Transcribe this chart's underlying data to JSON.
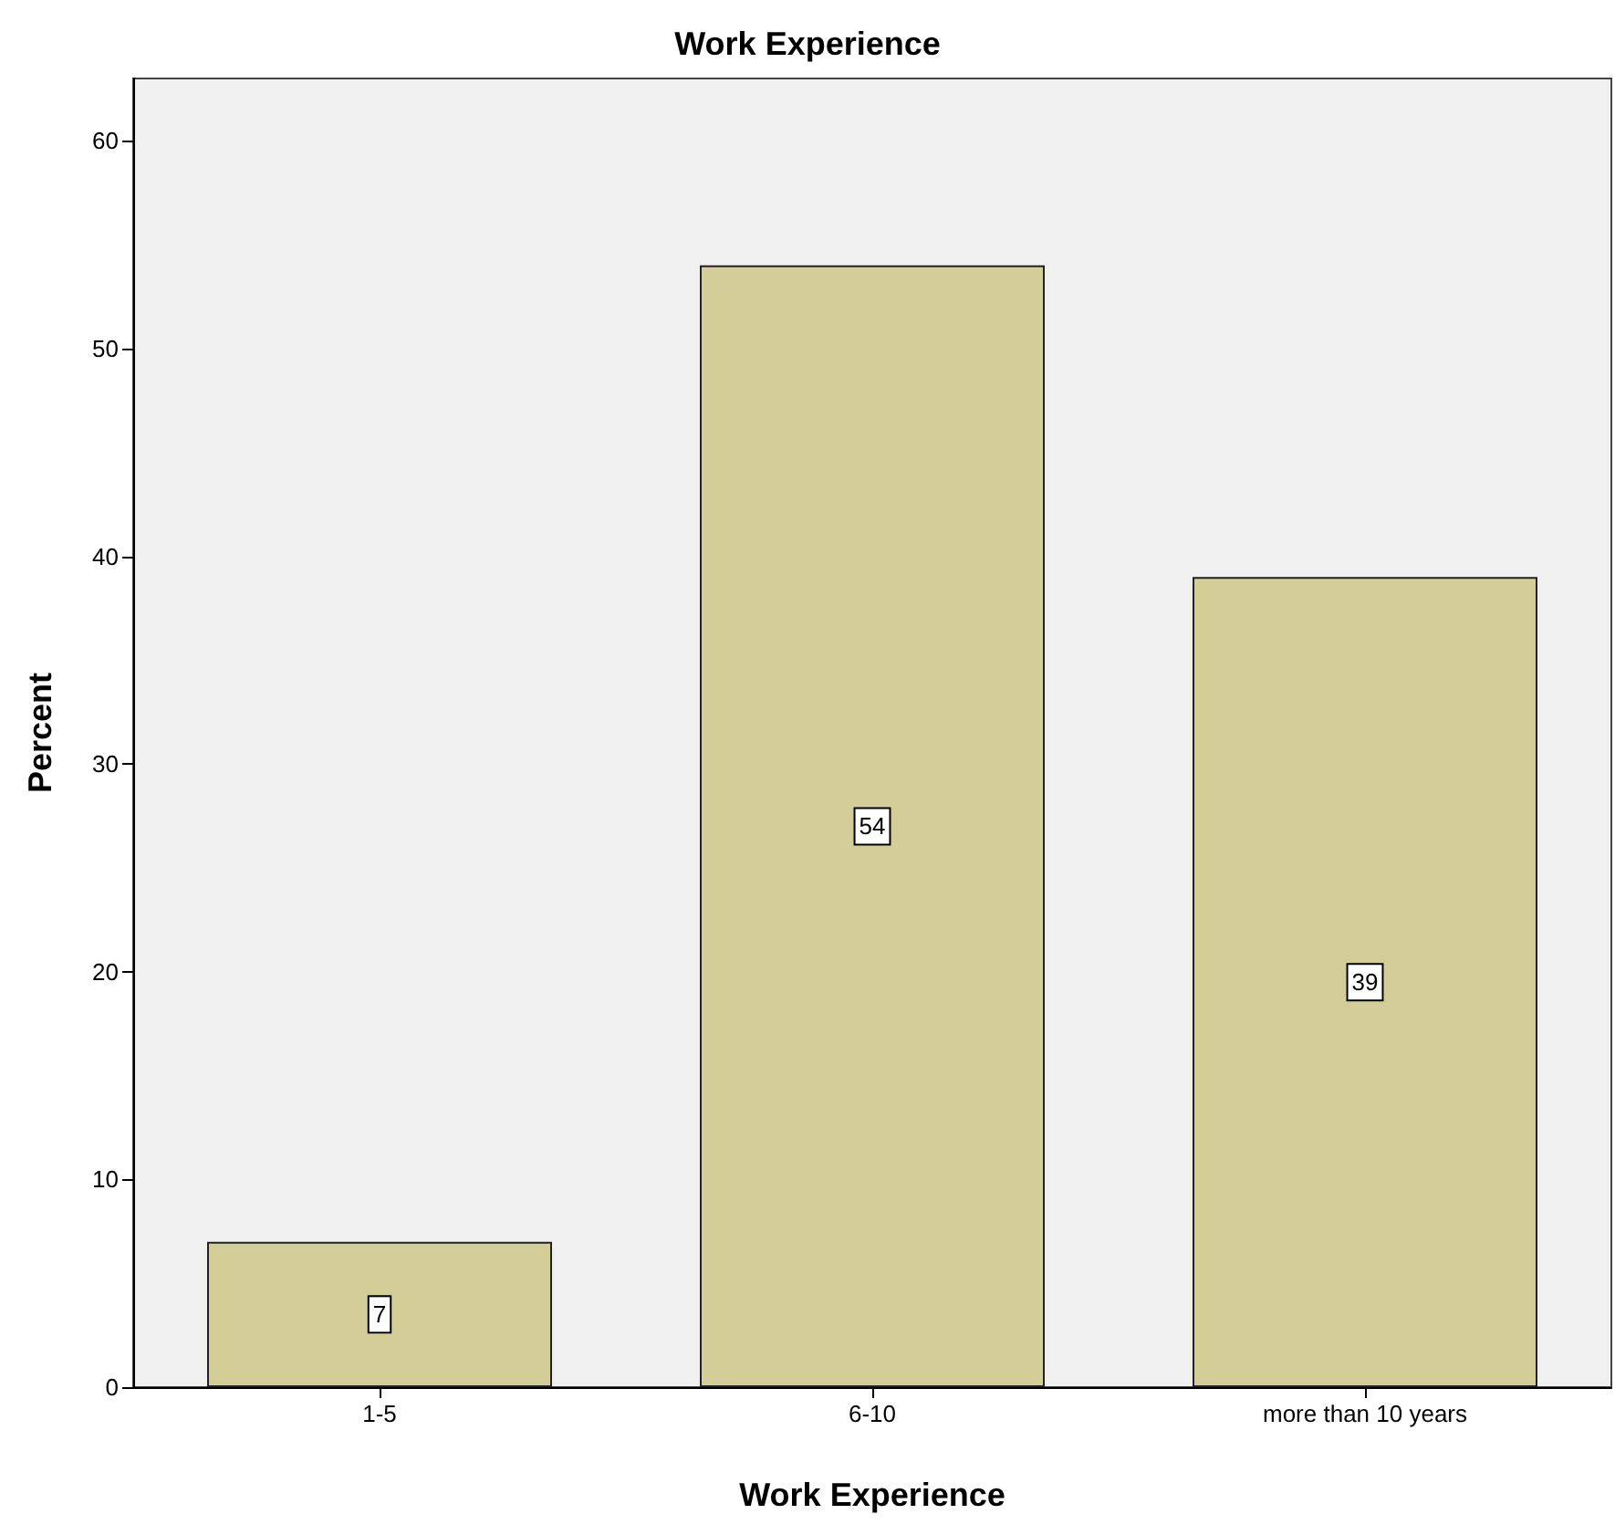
{
  "chart_data": {
    "type": "bar",
    "title": "Work Experience",
    "xlabel": "Work Experience",
    "ylabel": "Percent",
    "categories": [
      "1-5",
      "6-10",
      "more than 10 years"
    ],
    "values": [
      7,
      54,
      39
    ],
    "color": "#d3ce97",
    "ylim": [
      0,
      63
    ],
    "yticks": [
      0,
      10,
      20,
      30,
      40,
      50,
      60
    ],
    "grid": false,
    "data_labels": true
  }
}
